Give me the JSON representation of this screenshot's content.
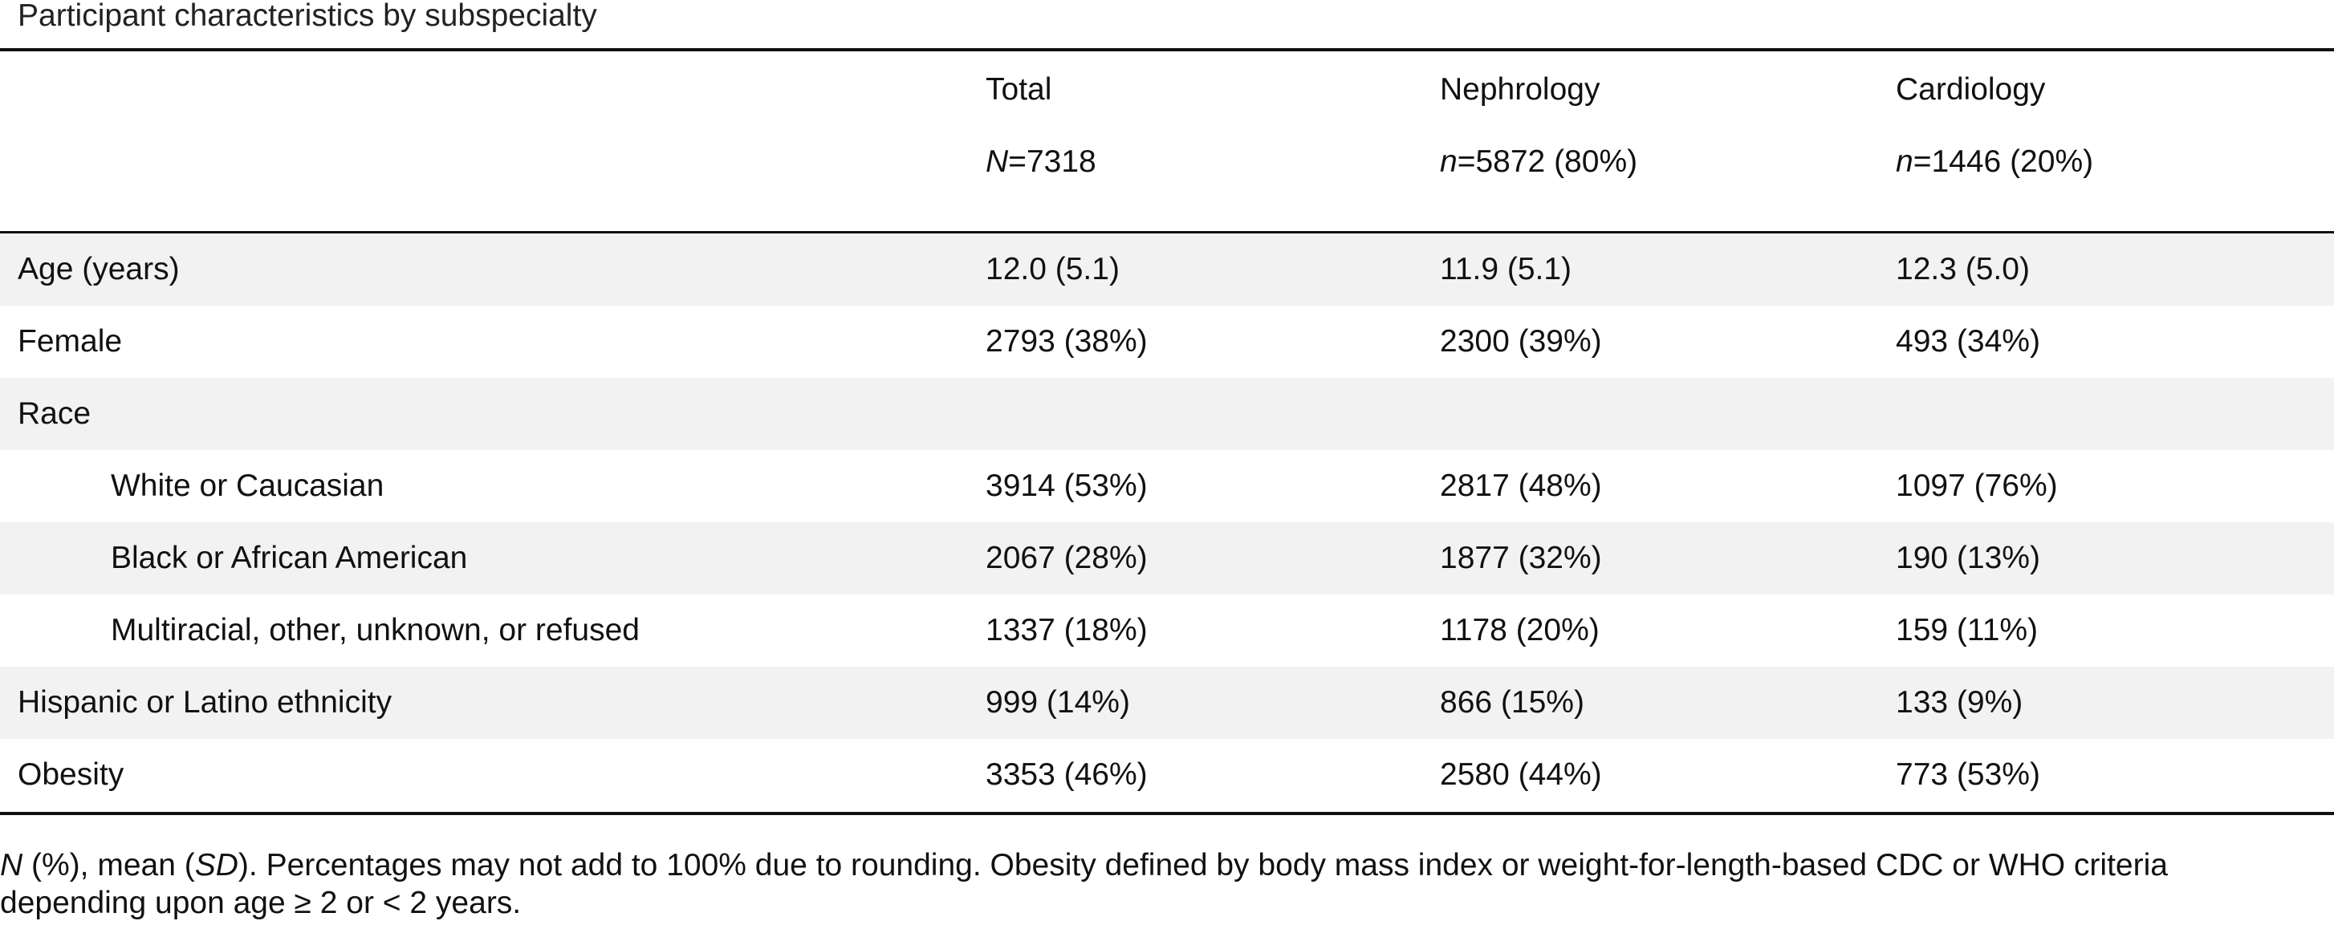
{
  "caption": "Participant characteristics by subspecialty",
  "header": {
    "columns": [
      {
        "name": "Total",
        "n_symbol": "N",
        "n_value": "=7318"
      },
      {
        "name": "Nephrology",
        "n_symbol": "n",
        "n_value": "=5872 (80%)"
      },
      {
        "name": "Cardiology",
        "n_symbol": "n",
        "n_value": "=1446 (20%)"
      }
    ]
  },
  "rows": [
    {
      "label": "Age (years)",
      "total": "12.0 (5.1)",
      "nephrology": "11.9 (5.1)",
      "cardiology": "12.3 (5.0)"
    },
    {
      "label": "Female",
      "total": "2793 (38%)",
      "nephrology": "2300 (39%)",
      "cardiology": "493 (34%)"
    },
    {
      "label": "Race",
      "total": "",
      "nephrology": "",
      "cardiology": ""
    },
    {
      "label": "White or Caucasian",
      "total": "3914 (53%)",
      "nephrology": "2817 (48%)",
      "cardiology": "1097 (76%)"
    },
    {
      "label": "Black or African American",
      "total": "2067 (28%)",
      "nephrology": "1877 (32%)",
      "cardiology": "190 (13%)"
    },
    {
      "label": "Multiracial, other, unknown, or refused",
      "total": "1337 (18%)",
      "nephrology": "1178 (20%)",
      "cardiology": "159 (11%)"
    },
    {
      "label": "Hispanic or Latino ethnicity",
      "total": "999 (14%)",
      "nephrology": "866 (15%)",
      "cardiology": "133 (9%)"
    },
    {
      "label": "Obesity",
      "total": "3353 (46%)",
      "nephrology": "2580 (44%)",
      "cardiology": "773 (53%)"
    }
  ],
  "footnote": {
    "n_symbol": "N",
    "part1": " (%), mean (",
    "sd_symbol": "SD",
    "part2": "). Percentages may not add to 100% due to rounding. Obesity defined by body mass index or weight-for-length-based CDC or WHO criteria depending upon age ≥ 2 or < 2 years."
  }
}
